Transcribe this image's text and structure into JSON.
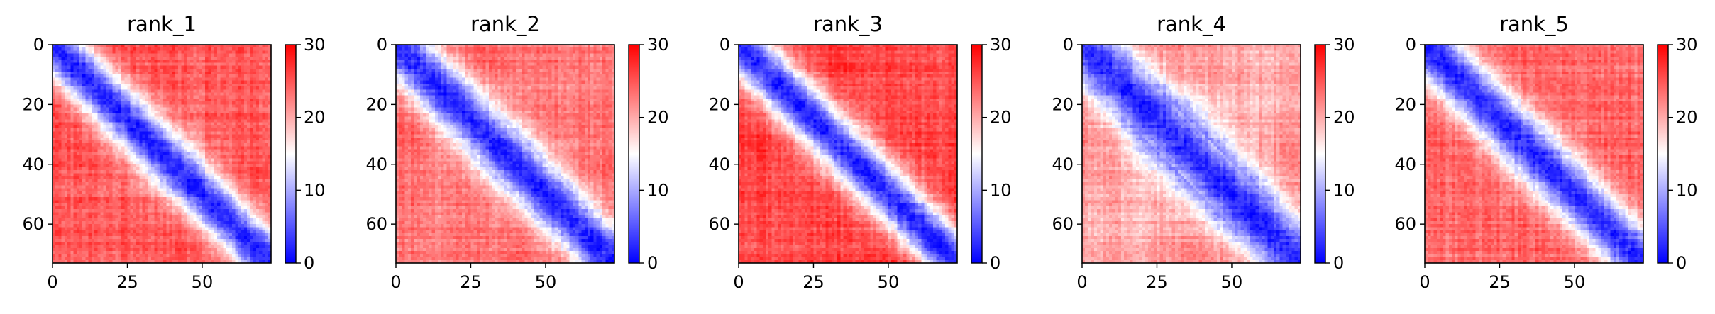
{
  "figure": {
    "background": "#ffffff"
  },
  "chart_data": [
    {
      "type": "heatmap",
      "title": "rank_1",
      "n": 73,
      "xticks": [
        0,
        25,
        50
      ],
      "yticks": [
        0,
        20,
        40,
        60
      ],
      "colorbar": {
        "min": 0,
        "max": 30,
        "ticks": [
          0,
          10,
          20,
          30
        ],
        "colors": [
          "#0000ff",
          "#ffffff",
          "#ff0000"
        ]
      },
      "features": {
        "offdiag_high": 26,
        "diag_min": 2,
        "band_width": 5.5
      }
    },
    {
      "type": "heatmap",
      "title": "rank_2",
      "n": 73,
      "xticks": [
        0,
        25,
        50
      ],
      "yticks": [
        0,
        20,
        40,
        60
      ],
      "colorbar": {
        "min": 0,
        "max": 30,
        "ticks": [
          0,
          10,
          20,
          30
        ],
        "colors": [
          "#0000ff",
          "#ffffff",
          "#ff0000"
        ]
      },
      "features": {
        "offdiag_high": 25,
        "diag_min": 2,
        "band_width": 6
      }
    },
    {
      "type": "heatmap",
      "title": "rank_3",
      "n": 73,
      "xticks": [
        0,
        25,
        50
      ],
      "yticks": [
        0,
        20,
        40,
        60
      ],
      "colorbar": {
        "min": 0,
        "max": 30,
        "ticks": [
          0,
          10,
          20,
          30
        ],
        "colors": [
          "#0000ff",
          "#ffffff",
          "#ff0000"
        ]
      },
      "features": {
        "offdiag_high": 27,
        "diag_min": 2,
        "band_width": 5.5
      }
    },
    {
      "type": "heatmap",
      "title": "rank_4",
      "n": 73,
      "xticks": [
        0,
        25,
        50
      ],
      "yticks": [
        0,
        20,
        40,
        60
      ],
      "colorbar": {
        "min": 0,
        "max": 30,
        "ticks": [
          0,
          10,
          20,
          30
        ],
        "colors": [
          "#0000ff",
          "#ffffff",
          "#ff0000"
        ]
      },
      "features": {
        "offdiag_high": 23,
        "diag_min": 2,
        "band_width": 7
      }
    },
    {
      "type": "heatmap",
      "title": "rank_5",
      "n": 73,
      "xticks": [
        0,
        25,
        50
      ],
      "yticks": [
        0,
        20,
        40,
        60
      ],
      "colorbar": {
        "min": 0,
        "max": 30,
        "ticks": [
          0,
          10,
          20,
          30
        ],
        "colors": [
          "#0000ff",
          "#ffffff",
          "#ff0000"
        ]
      },
      "features": {
        "offdiag_high": 25,
        "diag_min": 2,
        "band_width": 6
      }
    }
  ]
}
